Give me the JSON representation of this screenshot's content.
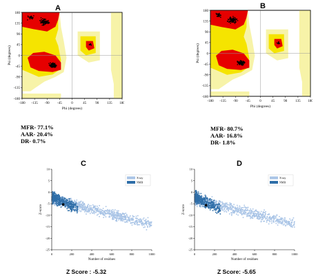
{
  "panels": {
    "A": {
      "letter": "A"
    },
    "B": {
      "letter": "B"
    },
    "C": {
      "letter": "C"
    },
    "D": {
      "letter": "D"
    }
  },
  "stats_A": {
    "mfr": "MFR- 77.1%",
    "aar": "AAR- 20.4%",
    "dr": "DR- 0.7%"
  },
  "stats_B": {
    "mfr": "MFR- 80.7%",
    "aar": "AAR- 16.8%",
    "dr": "DR- 1.8%"
  },
  "zscore_C": "Z Score : -5.32",
  "zscore_D": "Z Score: -5.65",
  "colors": {
    "core": "#e60000",
    "allowed": "#f5e400",
    "generous": "#f7f3a8",
    "disallowed": "#ffffff",
    "xray": "#a9c4e6",
    "nmr": "#2f6ea8"
  },
  "chart_data": [
    {
      "type": "scatter",
      "panel": "A",
      "xlabel": "Phi (degrees)",
      "ylabel": "Psi (degrees)",
      "xlim": [
        -180,
        180
      ],
      "ylim": [
        -180,
        180
      ],
      "xticks": [
        -180,
        -135,
        -90,
        -45,
        0,
        45,
        90,
        135,
        180
      ],
      "yticks": [
        180,
        135,
        90,
        45,
        0,
        -45,
        -90,
        -135,
        -180
      ],
      "regions": [
        "core",
        "allowed",
        "generous",
        "disallowed"
      ],
      "percentages": {
        "MFR": 77.1,
        "AAR": 20.4,
        "DR": 0.7
      }
    },
    {
      "type": "scatter",
      "panel": "B",
      "xlabel": "Phi (degrees)",
      "ylabel": "Psi (degrees)",
      "xlim": [
        -180,
        180
      ],
      "ylim": [
        -180,
        180
      ],
      "xticks": [
        -180,
        -135,
        -90,
        -45,
        0,
        45,
        90,
        135,
        180
      ],
      "yticks": [
        180,
        135,
        90,
        45,
        0,
        -45,
        -90,
        -135,
        -180
      ],
      "regions": [
        "core",
        "allowed",
        "generous",
        "disallowed"
      ],
      "percentages": {
        "MFR": 80.7,
        "AAR": 16.8,
        "DR": 1.8
      }
    },
    {
      "type": "scatter",
      "panel": "C",
      "xlabel": "Number of residues",
      "ylabel": "Z-score",
      "xlim": [
        0,
        1000
      ],
      "ylim": [
        -25,
        10
      ],
      "xticks": [
        0,
        200,
        400,
        600,
        800,
        1000
      ],
      "yticks": [
        10,
        5,
        0,
        -5,
        -10,
        -15,
        -20,
        -25
      ],
      "legend": [
        "X-ray",
        "NMR"
      ],
      "legend_position": "top-right",
      "zscore": -5.32
    },
    {
      "type": "scatter",
      "panel": "D",
      "xlabel": "Number of residues",
      "ylabel": "Z-score",
      "xlim": [
        0,
        1000
      ],
      "ylim": [
        -25,
        10
      ],
      "xticks": [
        0,
        200,
        400,
        600,
        800,
        1000
      ],
      "yticks": [
        10,
        5,
        0,
        -5,
        -10,
        -15,
        -20,
        -25
      ],
      "legend": [
        "X-ray",
        "NMR"
      ],
      "legend_position": "top-right",
      "zscore": -5.65
    }
  ]
}
